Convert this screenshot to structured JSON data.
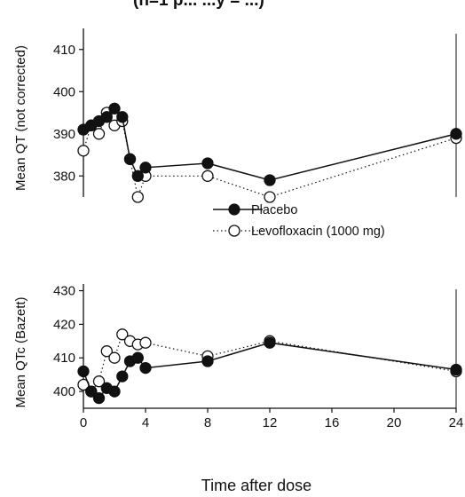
{
  "header_fragment": "(n=1 p... ...y = ...)",
  "xlabel": "Time after dose",
  "x_ticks": [
    0,
    4,
    8,
    12,
    16,
    20,
    24
  ],
  "legend": {
    "entries": [
      "Placebo",
      "Levofloxacin (1000 mg)"
    ]
  },
  "chart_data": [
    {
      "type": "line",
      "panel": "top",
      "title": "",
      "xlabel": "Time after dose",
      "ylabel": "Mean QT (not corrected)",
      "xlim": [
        0,
        24
      ],
      "ylim": [
        375,
        415
      ],
      "y_ticks": [
        380,
        390,
        400,
        410
      ],
      "grid": false,
      "legend_position": "bottom-center",
      "series": [
        {
          "name": "Placebo",
          "marker": "filled-circle",
          "line_style": "solid",
          "color": "#111111",
          "x": [
            0,
            0.5,
            1,
            1.5,
            2,
            2.5,
            3,
            3.5,
            4,
            8,
            12,
            24
          ],
          "y": [
            391,
            392,
            393,
            394,
            396,
            394,
            384,
            380,
            382,
            383,
            379,
            390
          ]
        },
        {
          "name": "Levofloxacin (1000 mg)",
          "marker": "open-circle",
          "line_style": "dotted",
          "color": "#111111",
          "x": [
            0,
            0.5,
            1,
            1.5,
            2,
            2.5,
            3,
            3.5,
            4,
            8,
            12,
            24
          ],
          "y": [
            386,
            392,
            390,
            395,
            392,
            393,
            384,
            375,
            380,
            380,
            375,
            389
          ]
        }
      ]
    },
    {
      "type": "line",
      "panel": "bottom",
      "title": "",
      "xlabel": "Time after dose",
      "ylabel": "Mean QTc (Bazett)",
      "xlim": [
        0,
        24
      ],
      "ylim": [
        395,
        432
      ],
      "y_ticks": [
        400,
        410,
        420,
        430
      ],
      "grid": false,
      "series": [
        {
          "name": "Placebo",
          "marker": "filled-circle",
          "line_style": "solid",
          "color": "#111111",
          "x": [
            0,
            0.5,
            1,
            1.5,
            2,
            2.5,
            3,
            3.5,
            4,
            8,
            12,
            24
          ],
          "y": [
            406,
            400,
            398,
            401,
            400,
            404.5,
            409,
            410,
            407,
            409,
            414.5,
            406.5
          ]
        },
        {
          "name": "Levofloxacin (1000 mg)",
          "marker": "open-circle",
          "line_style": "dotted",
          "color": "#111111",
          "x": [
            0,
            0.5,
            1,
            1.5,
            2,
            2.5,
            3,
            3.5,
            4,
            8,
            12,
            24
          ],
          "y": [
            402,
            400,
            403,
            412,
            410,
            417,
            415,
            414,
            414.5,
            410.5,
            415,
            406
          ]
        }
      ]
    }
  ]
}
